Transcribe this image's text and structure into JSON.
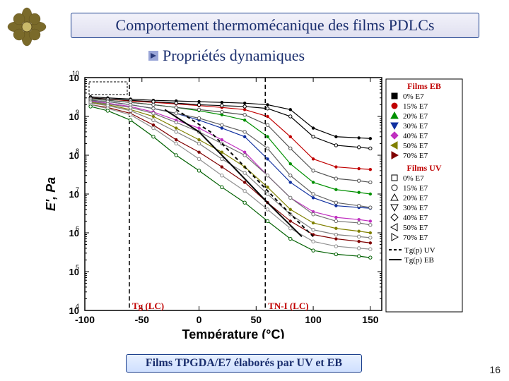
{
  "title": "Comportement thermomécanique des films PDLCs",
  "subtitle": "Propriétés dynamiques",
  "caption": "Films TPGDA/E7 élaborés par UV et EB",
  "page_number": "16",
  "chart": {
    "type": "line",
    "xlabel": "Température (°C)",
    "ylabel": "E', Pa",
    "label_fontsize": 18,
    "label_fontweight": "bold",
    "xlim": [
      -100,
      160
    ],
    "xticks": [
      -100,
      -50,
      0,
      50,
      100,
      150
    ],
    "yscale": "log",
    "ylim": [
      10000.0,
      10000000000.0
    ],
    "yticks_exp": [
      4,
      5,
      6,
      7,
      8,
      9,
      10
    ],
    "background_color": "#ffffff",
    "axis_color": "#000000",
    "vlines": [
      {
        "x": -61,
        "style": "dash",
        "color": "#000000",
        "label": "Tg (LC)",
        "label_color": "#c00000"
      },
      {
        "x": 58,
        "style": "dash",
        "color": "#000000",
        "label": "TN-I (LC)",
        "label_color": "#c00000"
      }
    ],
    "legend": {
      "title_eb": "Films EB",
      "title_uv": "Films UV",
      "title_color": "#c00000",
      "position": "right",
      "fontsize": 11,
      "items_eb": [
        {
          "label": "0% E7",
          "marker": "square",
          "color": "#000000"
        },
        {
          "label": "15% E7",
          "marker": "circle",
          "color": "#c00000"
        },
        {
          "label": "20% E7",
          "marker": "triangle-up",
          "color": "#009000"
        },
        {
          "label": "30% E7",
          "marker": "triangle-down",
          "color": "#1030a0"
        },
        {
          "label": "40% E7",
          "marker": "diamond",
          "color": "#c030c0"
        },
        {
          "label": "50% E7",
          "marker": "triangle-left",
          "color": "#808000"
        },
        {
          "label": "70% E7",
          "marker": "triangle-right",
          "color": "#800000"
        }
      ],
      "items_uv": [
        {
          "label": "0% E7",
          "marker": "square-open",
          "color": "#000000"
        },
        {
          "label": "15% E7",
          "marker": "circle-open",
          "color": "#000000"
        },
        {
          "label": "20% E7",
          "marker": "triangle-up-open",
          "color": "#000000"
        },
        {
          "label": "30% E7",
          "marker": "triangle-down-open",
          "color": "#000000"
        },
        {
          "label": "40% E7",
          "marker": "diamond-open",
          "color": "#000000"
        },
        {
          "label": "50% E7",
          "marker": "triangle-left-open",
          "color": "#000000"
        },
        {
          "label": "70% E7",
          "marker": "triangle-right-open",
          "color": "#000000"
        }
      ],
      "extra": [
        {
          "label": "Tg(p) UV",
          "style": "dash",
          "color": "#000000"
        },
        {
          "label": "Tg(p) EB",
          "style": "solid",
          "color": "#000000"
        }
      ]
    },
    "series": [
      {
        "color": "#000000",
        "type": "filled",
        "x": [
          -95,
          -80,
          -60,
          -40,
          -20,
          0,
          20,
          40,
          60,
          80,
          100,
          120,
          140,
          150
        ],
        "y": [
          3200000000.0,
          3000000000.0,
          2800000000.0,
          2600000000.0,
          2500000000.0,
          2400000000.0,
          2300000000.0,
          2200000000.0,
          2000000000.0,
          1500000000.0,
          500000000.0,
          300000000.0,
          280000000.0,
          270000000.0
        ]
      },
      {
        "color": "#c00000",
        "type": "filled",
        "x": [
          -95,
          -80,
          -60,
          -40,
          -20,
          0,
          20,
          40,
          60,
          80,
          100,
          120,
          140,
          150
        ],
        "y": [
          3000000000.0,
          2800000000.0,
          2500000000.0,
          2300000000.0,
          2100000000.0,
          1900000000.0,
          1700000000.0,
          1500000000.0,
          1000000000.0,
          300000000.0,
          80000000.0,
          50000000.0,
          45000000.0,
          43000000.0
        ]
      },
      {
        "color": "#009000",
        "type": "filled",
        "x": [
          -95,
          -80,
          -60,
          -40,
          -20,
          0,
          20,
          40,
          60,
          80,
          100,
          120,
          140,
          150
        ],
        "y": [
          2800000000.0,
          2600000000.0,
          2300000000.0,
          2000000000.0,
          1700000000.0,
          1400000000.0,
          1100000000.0,
          800000000.0,
          300000000.0,
          60000000.0,
          20000000.0,
          13000000.0,
          11000000.0,
          10000000.0
        ]
      },
      {
        "color": "#1030a0",
        "type": "filled",
        "x": [
          -95,
          -80,
          -60,
          -40,
          -20,
          0,
          20,
          40,
          60,
          80,
          100,
          120,
          140,
          150
        ],
        "y": [
          2600000000.0,
          2400000000.0,
          2000000000.0,
          1600000000.0,
          1200000000.0,
          800000000.0,
          500000000.0,
          300000000.0,
          80000000.0,
          20000000.0,
          8000000.0,
          5000000.0,
          4500000.0,
          4300000.0
        ]
      },
      {
        "color": "#c030c0",
        "type": "filled",
        "x": [
          -95,
          -80,
          -60,
          -40,
          -20,
          0,
          20,
          40,
          60,
          80,
          100,
          120,
          140,
          150
        ],
        "y": [
          2500000000.0,
          2200000000.0,
          1800000000.0,
          1300000000.0,
          800000000.0,
          500000000.0,
          250000000.0,
          120000000.0,
          30000000.0,
          8000000.0,
          3500000.0,
          2500000.0,
          2200000.0,
          2000000.0
        ]
      },
      {
        "color": "#808000",
        "type": "filled",
        "x": [
          -95,
          -80,
          -60,
          -40,
          -20,
          0,
          20,
          40,
          60,
          80,
          100,
          120,
          140,
          150
        ],
        "y": [
          2300000000.0,
          2000000000.0,
          1500000000.0,
          1000000000.0,
          500000000.0,
          250000000.0,
          120000000.0,
          50000000.0,
          15000000.0,
          4000000.0,
          1800000.0,
          1300000.0,
          1100000.0,
          1000000.0
        ]
      },
      {
        "color": "#800000",
        "type": "filled",
        "x": [
          -95,
          -80,
          -60,
          -40,
          -20,
          0,
          20,
          40,
          60,
          80,
          100,
          120,
          140,
          150
        ],
        "y": [
          2000000000.0,
          1700000000.0,
          1200000000.0,
          600000000.0,
          250000000.0,
          120000000.0,
          50000000.0,
          20000000.0,
          6000000.0,
          2000000.0,
          900000.0,
          700000.0,
          600000.0,
          550000.0
        ]
      },
      {
        "color": "#000000",
        "type": "open",
        "x": [
          -95,
          -80,
          -60,
          -40,
          -20,
          0,
          20,
          40,
          60,
          80,
          100,
          120,
          140,
          150
        ],
        "y": [
          3000000000.0,
          2800000000.0,
          2600000000.0,
          2400000000.0,
          2200000000.0,
          2000000000.0,
          1900000000.0,
          1800000000.0,
          1600000000.0,
          1000000000.0,
          300000000.0,
          180000000.0,
          160000000.0,
          150000000.0
        ]
      },
      {
        "color": "#505050",
        "type": "open",
        "x": [
          -95,
          -80,
          -60,
          -40,
          -20,
          0,
          20,
          40,
          60,
          80,
          100,
          120,
          140,
          150
        ],
        "y": [
          2800000000.0,
          2600000000.0,
          2300000000.0,
          2000000000.0,
          1700000000.0,
          1500000000.0,
          1300000000.0,
          1100000000.0,
          600000000.0,
          150000000.0,
          40000000.0,
          25000000.0,
          22000000.0,
          20000000.0
        ]
      },
      {
        "color": "#606060",
        "type": "open",
        "x": [
          -95,
          -80,
          -60,
          -40,
          -20,
          0,
          20,
          40,
          60,
          80,
          100,
          120,
          140,
          150
        ],
        "y": [
          2600000000.0,
          2400000000.0,
          2000000000.0,
          1600000000.0,
          1200000000.0,
          900000000.0,
          600000000.0,
          400000000.0,
          150000000.0,
          30000000.0,
          10000000.0,
          6000000.0,
          5000000.0,
          4500000.0
        ]
      },
      {
        "color": "#707070",
        "type": "open",
        "x": [
          -95,
          -80,
          -60,
          -40,
          -20,
          0,
          20,
          40,
          60,
          80,
          100,
          120,
          140,
          150
        ],
        "y": [
          2400000000.0,
          2100000000.0,
          1700000000.0,
          1200000000.0,
          700000000.0,
          400000000.0,
          200000000.0,
          100000000.0,
          30000000.0,
          8000000.0,
          3000000.0,
          2000000.0,
          1800000.0,
          1600000.0
        ]
      },
      {
        "color": "#808080",
        "type": "open",
        "x": [
          -95,
          -80,
          -60,
          -40,
          -20,
          0,
          20,
          40,
          60,
          80,
          100,
          120,
          140,
          150
        ],
        "y": [
          2200000000.0,
          1900000000.0,
          1400000000.0,
          800000000.0,
          400000000.0,
          200000000.0,
          80000000.0,
          35000000.0,
          10000000.0,
          3000000.0,
          1200000.0,
          900000.0,
          800000.0,
          750000.0
        ]
      },
      {
        "color": "#909090",
        "type": "open",
        "x": [
          -95,
          -80,
          -60,
          -40,
          -20,
          0,
          20,
          40,
          60,
          80,
          100,
          120,
          140,
          150
        ],
        "y": [
          2000000000.0,
          1600000000.0,
          1100000000.0,
          500000000.0,
          200000000.0,
          80000000.0,
          30000000.0,
          12000000.0,
          4000000.0,
          1300000.0,
          600000.0,
          450000.0,
          400000.0,
          380000.0
        ]
      },
      {
        "color": "#006000",
        "type": "open-green",
        "x": [
          -95,
          -80,
          -60,
          -40,
          -20,
          0,
          20,
          40,
          60,
          80,
          100,
          120,
          140,
          150
        ],
        "y": [
          1800000000.0,
          1400000000.0,
          800000000.0,
          300000000.0,
          100000000.0,
          40000000.0,
          15000000.0,
          6000000.0,
          2000000.0,
          700000.0,
          350000.0,
          280000.0,
          250000.0,
          230000.0
        ]
      }
    ],
    "tg_curves": [
      {
        "style": "solid",
        "x": [
          -30,
          0,
          30,
          60,
          90
        ],
        "y": [
          1500000000.0,
          400000000.0,
          50000000.0,
          6000000.0,
          800000.0
        ]
      },
      {
        "style": "dash",
        "x": [
          -20,
          10,
          40,
          70,
          100
        ],
        "y": [
          1500000000.0,
          400000000.0,
          50000000.0,
          6000000.0,
          800000.0
        ]
      }
    ]
  }
}
